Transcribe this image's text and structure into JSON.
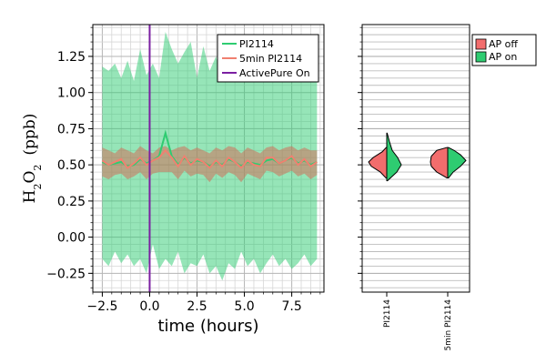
{
  "chart_data": [
    {
      "type": "line",
      "xlabel": "time (hours)",
      "ylabel": "H2O2 (ppb)",
      "ylabel_parts": {
        "h": "H",
        "sub2a": "2",
        "o": "O",
        "sub2b": "2",
        "unit": "(ppb)"
      },
      "xlim": [
        -3,
        9.2
      ],
      "ylim": [
        -0.38,
        1.47
      ],
      "xticks": [
        -2.5,
        0.0,
        2.5,
        5.0,
        7.5
      ],
      "xtick_labels": [
        "−2.5",
        "0.0",
        "2.5",
        "5.0",
        "7.5"
      ],
      "yticks": [
        -0.25,
        0.0,
        0.25,
        0.5,
        0.75,
        1.0,
        1.25
      ],
      "ytick_labels": [
        "−0.25",
        "0.00",
        "0.25",
        "0.50",
        "0.75",
        "1.00",
        "1.25"
      ],
      "grid": true,
      "legend_position": "top-right",
      "vline": {
        "name": "ActivePure On",
        "x": 0.0,
        "color": "#7b1fa2"
      },
      "series": [
        {
          "name": "PI2114",
          "color": "#2ecc71",
          "x": [
            -2.5,
            -2.167,
            -1.833,
            -1.5,
            -1.167,
            -0.833,
            -0.5,
            -0.167,
            0.167,
            0.5,
            0.833,
            1.167,
            1.5,
            1.833,
            2.167,
            2.5,
            2.833,
            3.167,
            3.5,
            3.833,
            4.167,
            4.5,
            4.833,
            5.167,
            5.5,
            5.833,
            6.167,
            6.5,
            6.833,
            7.167,
            7.5,
            7.833,
            8.167,
            8.5,
            8.833
          ],
          "y": [
            0.52,
            0.5,
            0.51,
            0.52,
            0.49,
            0.5,
            0.54,
            0.51,
            0.53,
            0.56,
            0.72,
            0.56,
            0.5,
            0.55,
            0.51,
            0.53,
            0.52,
            0.49,
            0.52,
            0.5,
            0.54,
            0.52,
            0.49,
            0.52,
            0.51,
            0.5,
            0.53,
            0.54,
            0.51,
            0.53,
            0.55,
            0.51,
            0.53,
            0.5,
            0.52
          ],
          "band_upper": [
            1.18,
            1.15,
            1.2,
            1.1,
            1.22,
            1.08,
            1.3,
            1.12,
            1.2,
            1.1,
            1.42,
            1.3,
            1.2,
            1.28,
            1.35,
            1.1,
            1.32,
            1.15,
            1.25,
            1.1,
            1.3,
            1.2,
            1.38,
            1.15,
            1.25,
            1.1,
            1.3,
            1.15,
            1.2,
            1.22,
            1.18,
            1.12,
            1.3,
            1.15,
            1.2
          ],
          "band_lower": [
            -0.15,
            -0.2,
            -0.1,
            -0.18,
            -0.12,
            -0.2,
            -0.15,
            -0.25,
            -0.05,
            -0.22,
            -0.15,
            -0.2,
            -0.1,
            -0.25,
            -0.18,
            -0.2,
            -0.12,
            -0.25,
            -0.2,
            -0.3,
            -0.18,
            -0.22,
            -0.1,
            -0.2,
            -0.15,
            -0.25,
            -0.18,
            -0.12,
            -0.2,
            -0.15,
            -0.22,
            -0.18,
            -0.12,
            -0.2,
            -0.15
          ]
        },
        {
          "name": "5min PI2114",
          "color": "#f08070",
          "x": [
            -2.5,
            -2.167,
            -1.833,
            -1.5,
            -1.167,
            -0.833,
            -0.5,
            -0.167,
            0.167,
            0.5,
            0.833,
            1.167,
            1.5,
            1.833,
            2.167,
            2.5,
            2.833,
            3.167,
            3.5,
            3.833,
            4.167,
            4.5,
            4.833,
            5.167,
            5.5,
            5.833,
            6.167,
            6.5,
            6.833,
            7.167,
            7.5,
            7.833,
            8.167,
            8.5,
            8.833
          ],
          "y": [
            0.53,
            0.5,
            0.52,
            0.54,
            0.48,
            0.51,
            0.55,
            0.5,
            0.53,
            0.55,
            0.6,
            0.55,
            0.49,
            0.56,
            0.5,
            0.54,
            0.52,
            0.48,
            0.53,
            0.49,
            0.55,
            0.52,
            0.48,
            0.53,
            0.5,
            0.49,
            0.55,
            0.55,
            0.51,
            0.53,
            0.56,
            0.5,
            0.54,
            0.49,
            0.52
          ],
          "band_upper": [
            0.62,
            0.6,
            0.58,
            0.62,
            0.6,
            0.58,
            0.63,
            0.6,
            0.58,
            0.62,
            0.63,
            0.6,
            0.62,
            0.63,
            0.6,
            0.62,
            0.6,
            0.58,
            0.62,
            0.6,
            0.63,
            0.62,
            0.58,
            0.62,
            0.6,
            0.58,
            0.62,
            0.63,
            0.6,
            0.62,
            0.63,
            0.6,
            0.62,
            0.6,
            0.6
          ],
          "band_lower": [
            0.42,
            0.4,
            0.43,
            0.44,
            0.4,
            0.42,
            0.45,
            0.4,
            0.44,
            0.45,
            0.45,
            0.45,
            0.4,
            0.46,
            0.42,
            0.44,
            0.43,
            0.38,
            0.44,
            0.41,
            0.45,
            0.43,
            0.38,
            0.44,
            0.42,
            0.4,
            0.46,
            0.45,
            0.42,
            0.44,
            0.46,
            0.42,
            0.44,
            0.4,
            0.43
          ]
        }
      ]
    },
    {
      "type": "violin",
      "split": true,
      "categories": [
        "PI2114",
        "5min PI2114"
      ],
      "ylim": [
        -0.38,
        1.47
      ],
      "grid": true,
      "legend_position": "top-right-outside",
      "legend": [
        {
          "name": "AP off",
          "color": "#f26d6d"
        },
        {
          "name": "AP on",
          "color": "#2ecc71"
        }
      ],
      "violins": [
        {
          "category": "PI2114",
          "off": {
            "y": [
              0.41,
              0.45,
              0.49,
              0.52,
              0.55,
              0.59,
              0.62
            ],
            "w": [
              0.05,
              0.35,
              0.85,
              1.0,
              0.75,
              0.25,
              0.03
            ]
          },
          "on": {
            "y": [
              0.39,
              0.45,
              0.5,
              0.55,
              0.6,
              0.66,
              0.72
            ],
            "w": [
              0.04,
              0.55,
              0.8,
              0.6,
              0.3,
              0.15,
              0.02
            ]
          }
        },
        {
          "category": "5min PI2114",
          "off": {
            "y": [
              0.41,
              0.45,
              0.49,
              0.52,
              0.56,
              0.6,
              0.62
            ],
            "w": [
              0.05,
              0.6,
              0.9,
              0.95,
              0.9,
              0.6,
              0.04
            ]
          },
          "on": {
            "y": [
              0.41,
              0.45,
              0.49,
              0.53,
              0.57,
              0.6,
              0.62
            ],
            "w": [
              0.05,
              0.3,
              0.7,
              1.0,
              0.7,
              0.35,
              0.04
            ]
          }
        }
      ]
    }
  ]
}
